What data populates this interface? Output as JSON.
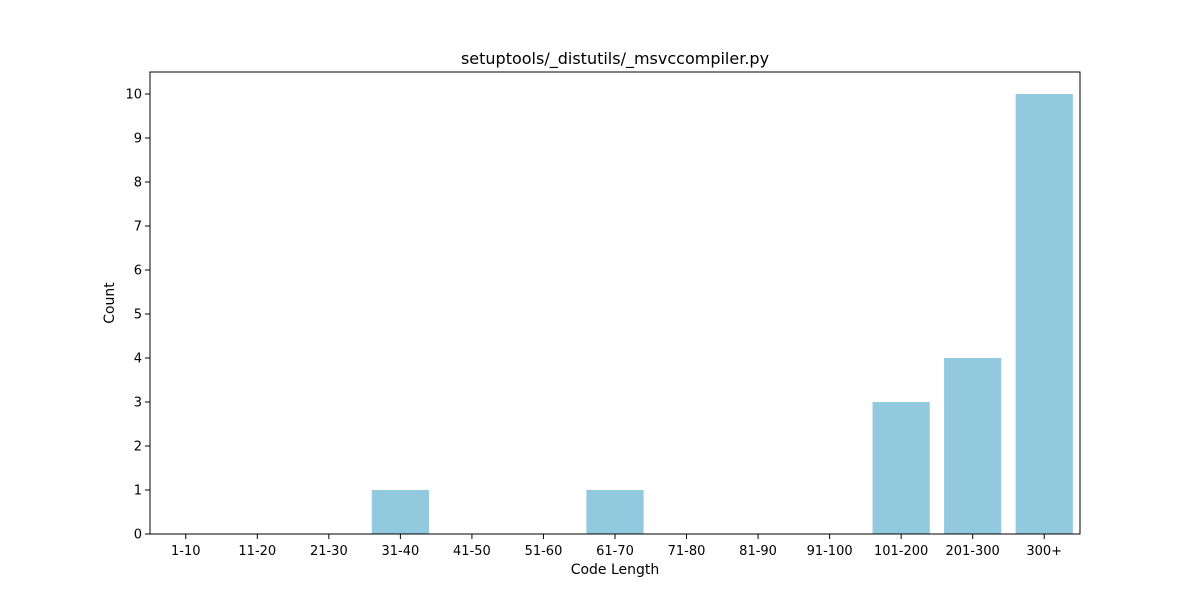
{
  "chart_data": {
    "type": "bar",
    "title": "setuptools/_distutils/_msvccompiler.py",
    "xlabel": "Code Length",
    "ylabel": "Count",
    "categories": [
      "1-10",
      "11-20",
      "21-30",
      "31-40",
      "41-50",
      "51-60",
      "61-70",
      "71-80",
      "81-90",
      "91-100",
      "101-200",
      "201-300",
      "300+"
    ],
    "values": [
      0,
      0,
      0,
      1,
      0,
      0,
      1,
      0,
      0,
      0,
      3,
      4,
      10
    ],
    "ylim": [
      0,
      10.5
    ],
    "yticks": [
      0,
      1,
      2,
      3,
      4,
      5,
      6,
      7,
      8,
      9,
      10
    ],
    "grid": false,
    "bar_color": "#92c9df"
  }
}
